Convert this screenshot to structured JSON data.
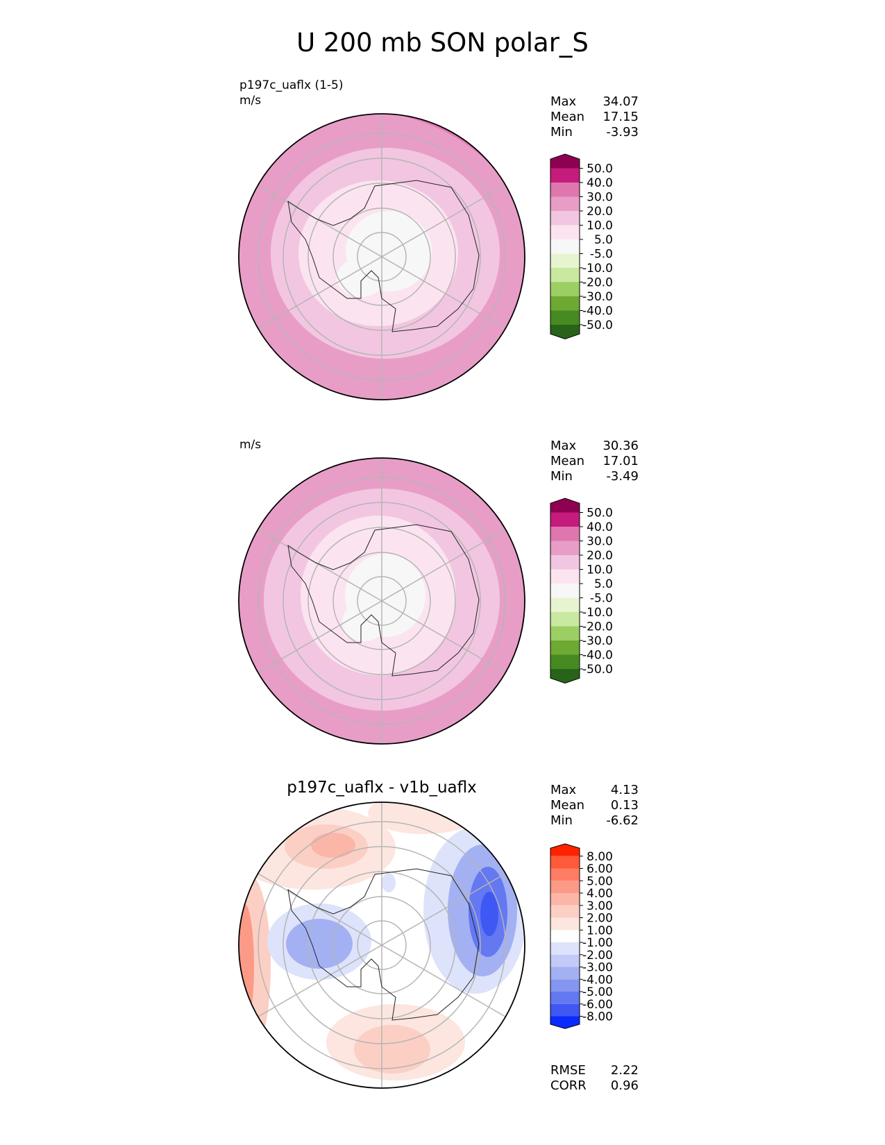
{
  "title": "U 200 mb SON polar_S",
  "panels": [
    {
      "id": "test",
      "label_top": "p197c_uaflx (1-5)",
      "units": "m/s",
      "stats": [
        {
          "name": "Max",
          "value": "34.07"
        },
        {
          "name": "Mean",
          "value": "17.15"
        },
        {
          "name": "Min",
          "value": "-3.93"
        }
      ],
      "colorbar": {
        "labels": [
          "50.0",
          "40.0",
          "30.0",
          "20.0",
          "10.0",
          "5.0",
          "-5.0",
          "-10.0",
          "-20.0",
          "-30.0",
          "-40.0",
          "-50.0"
        ],
        "colors": [
          "#8e0152",
          "#c51b7d",
          "#de77ae",
          "#e89dc7",
          "#f2c6e0",
          "#fbe4f0",
          "#f7f7f7",
          "#e6f5d0",
          "#c9e8a0",
          "#9ccf63",
          "#6ea934",
          "#468a21",
          "#276419"
        ]
      }
    },
    {
      "id": "ref",
      "label_top": "",
      "units": "m/s",
      "stats": [
        {
          "name": "Max",
          "value": "30.36"
        },
        {
          "name": "Mean",
          "value": "17.01"
        },
        {
          "name": "Min",
          "value": "-3.49"
        }
      ],
      "colorbar": {
        "labels": [
          "50.0",
          "40.0",
          "30.0",
          "20.0",
          "10.0",
          "5.0",
          "-5.0",
          "-10.0",
          "-20.0",
          "-30.0",
          "-40.0",
          "-50.0"
        ],
        "colors": [
          "#8e0152",
          "#c51b7d",
          "#de77ae",
          "#e89dc7",
          "#f2c6e0",
          "#fbe4f0",
          "#f7f7f7",
          "#e6f5d0",
          "#c9e8a0",
          "#9ccf63",
          "#6ea934",
          "#468a21",
          "#276419"
        ]
      }
    },
    {
      "id": "diff",
      "title": "p197c_uaflx - v1b_uaflx",
      "stats": [
        {
          "name": "Max",
          "value": "4.13"
        },
        {
          "name": "Mean",
          "value": "0.13"
        },
        {
          "name": "Min",
          "value": "-6.62"
        }
      ],
      "extra_stats": [
        {
          "name": "RMSE",
          "value": "2.22"
        },
        {
          "name": "CORR",
          "value": "0.96"
        }
      ],
      "colorbar": {
        "labels": [
          "8.00",
          "6.00",
          "5.00",
          "4.00",
          "3.00",
          "2.00",
          "1.00",
          "-1.00",
          "-2.00",
          "-3.00",
          "-4.00",
          "-5.00",
          "-6.00",
          "-8.00"
        ],
        "colors": [
          "#ff2200",
          "#ff5a3a",
          "#ff7d65",
          "#fc9a88",
          "#fbb6a7",
          "#fccfc4",
          "#fde6e0",
          "#ffffff",
          "#dde3fb",
          "#c2cbf7",
          "#a3b1f3",
          "#8596f0",
          "#6478f1",
          "#3f58f4",
          "#0a2bfd"
        ]
      }
    }
  ],
  "chart_data": [
    {
      "type": "heatmap",
      "projection": "south polar stereographic",
      "units": "m/s",
      "label": "p197c_uaflx (1-5)",
      "levels": [
        -50,
        -40,
        -30,
        -20,
        -10,
        -5,
        5,
        10,
        20,
        30,
        40,
        50
      ],
      "max": 34.07,
      "mean": 17.15,
      "min": -3.93
    },
    {
      "type": "heatmap",
      "projection": "south polar stereographic",
      "units": "m/s",
      "levels": [
        -50,
        -40,
        -30,
        -20,
        -10,
        -5,
        5,
        10,
        20,
        30,
        40,
        50
      ],
      "max": 30.36,
      "mean": 17.01,
      "min": -3.49
    },
    {
      "type": "heatmap",
      "projection": "south polar stereographic",
      "title": "p197c_uaflx - v1b_uaflx",
      "levels": [
        -8,
        -6,
        -5,
        -4,
        -3,
        -2,
        -1,
        1,
        2,
        3,
        4,
        5,
        6,
        8
      ],
      "max": 4.13,
      "mean": 0.13,
      "min": -6.62,
      "rmse": 2.22,
      "corr": 0.96
    }
  ]
}
